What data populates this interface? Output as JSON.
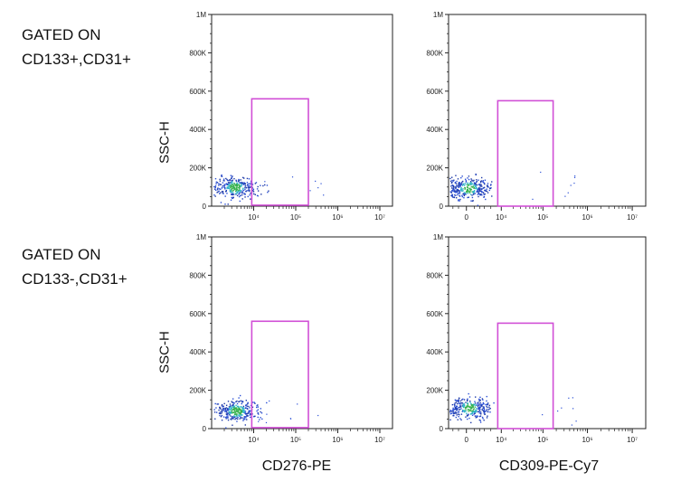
{
  "row_labels": [
    {
      "line1": "GATED ON",
      "line2": "CD133+,CD31+"
    },
    {
      "line1": "GATED ON",
      "line2": "CD133-,CD31+"
    }
  ],
  "y_axis_label": "SSC-H",
  "x_axis_titles": [
    "CD276-PE",
    "CD309-PE-Cy7"
  ],
  "colors": {
    "gate": "#d14fd6",
    "axis": "#222222",
    "dots": [
      "#2a4fd6",
      "#3a7bd5",
      "#2fb3c8",
      "#37b24d",
      "#1e3aa8"
    ]
  },
  "chart_data": [
    {
      "type": "scatter",
      "panel": "row1-col1",
      "xlabel": "",
      "ylabel": "SSC-H",
      "x_scale": "log",
      "x_ticks": [
        "10⁴",
        "10⁵",
        "10⁶",
        "10⁷"
      ],
      "x_tick_values": [
        10000,
        100000,
        1000000,
        10000000
      ],
      "y_ticks": [
        "0",
        "200K",
        "400K",
        "600K",
        "800K",
        "1M"
      ],
      "y_tick_values": [
        0,
        200000,
        400000,
        600000,
        800000,
        1000000
      ],
      "ylim": [
        0,
        1000000
      ],
      "xlim": [
        1000,
        20000000
      ],
      "gate": {
        "x": [
          9000,
          200000
        ],
        "y": [
          5000,
          560000
        ]
      },
      "cluster": {
        "x_center": 3500,
        "y_center": 100000,
        "x_spread": 0.28,
        "y_spread": 28000,
        "n": 320
      }
    },
    {
      "type": "scatter",
      "panel": "row1-col2",
      "xlabel": "",
      "ylabel": "",
      "x_scale": "biexponential",
      "x_ticks": [
        "0",
        "10⁴",
        "10⁵",
        "10⁶",
        "10⁷"
      ],
      "x_tick_values": [
        0,
        10000,
        100000,
        1000000,
        10000000
      ],
      "y_ticks": [
        "0",
        "200K",
        "400K",
        "600K",
        "800K",
        "1M"
      ],
      "y_tick_values": [
        0,
        200000,
        400000,
        600000,
        800000,
        1000000
      ],
      "ylim": [
        0,
        1000000
      ],
      "gate": {
        "x": [
          8000,
          170000
        ],
        "y": [
          0,
          550000
        ]
      },
      "cluster": {
        "x_center": 200,
        "y_center": 95000,
        "x_spread": 1800,
        "y_spread": 30000,
        "n": 320
      }
    },
    {
      "type": "scatter",
      "panel": "row2-col1",
      "xlabel": "CD276-PE",
      "ylabel": "SSC-H",
      "x_scale": "log",
      "x_ticks": [
        "10⁴",
        "10⁵",
        "10⁶",
        "10⁷"
      ],
      "x_tick_values": [
        10000,
        100000,
        1000000,
        10000000
      ],
      "y_ticks": [
        "0",
        "200K",
        "400K",
        "600K",
        "800K",
        "1M"
      ],
      "y_tick_values": [
        0,
        200000,
        400000,
        600000,
        800000,
        1000000
      ],
      "ylim": [
        0,
        1000000
      ],
      "xlim": [
        1000,
        20000000
      ],
      "gate": {
        "x": [
          9000,
          200000
        ],
        "y": [
          5000,
          560000
        ]
      },
      "cluster": {
        "x_center": 3800,
        "y_center": 95000,
        "x_spread": 0.25,
        "y_spread": 26000,
        "n": 340
      }
    },
    {
      "type": "scatter",
      "panel": "row2-col2",
      "xlabel": "CD309-PE-Cy7",
      "ylabel": "",
      "x_scale": "biexponential",
      "x_ticks": [
        "0",
        "10⁴",
        "10⁵",
        "10⁶",
        "10⁷"
      ],
      "x_tick_values": [
        0,
        10000,
        100000,
        1000000,
        10000000
      ],
      "y_ticks": [
        "0",
        "200K",
        "400K",
        "600K",
        "800K",
        "1M"
      ],
      "y_tick_values": [
        0,
        200000,
        400000,
        600000,
        800000,
        1000000
      ],
      "ylim": [
        0,
        1000000
      ],
      "gate": {
        "x": [
          8000,
          170000
        ],
        "y": [
          0,
          550000
        ]
      },
      "cluster": {
        "x_center": 300,
        "y_center": 110000,
        "x_spread": 1800,
        "y_spread": 28000,
        "n": 320
      }
    }
  ]
}
